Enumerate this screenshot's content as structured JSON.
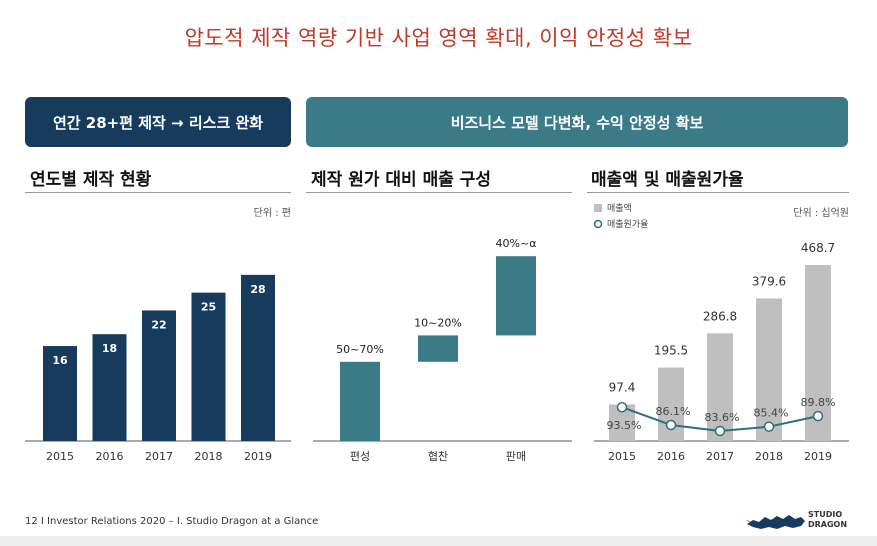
{
  "title": "압도적 제작 역량 기반 사업 영역 확대, 이익 안정성 확보",
  "banners": {
    "left": "연간 28+편 제작 → 리스크 완화",
    "right": "비즈니스 모델 다변화, 수익 안정성 확보"
  },
  "colors": {
    "title": "#c0392b",
    "navy": "#163b5c",
    "teal": "#3b7b88",
    "gray_bar": "#bfbfbf",
    "ratio_line": "#2f6f7c"
  },
  "chart_data": [
    {
      "type": "bar",
      "title": "연도별 제작 현황",
      "unit": "단위 : 편",
      "categories": [
        "2015",
        "2016",
        "2017",
        "2018",
        "2019"
      ],
      "values": [
        16,
        18,
        22,
        25,
        28
      ],
      "ylim": [
        0,
        30
      ]
    },
    {
      "type": "bar",
      "subtype": "waterfall",
      "title": "제작 원가 대비 매출 구성",
      "categories": [
        "편성",
        "협찬",
        "판매"
      ],
      "labels": [
        "50~70%",
        "10~20%",
        "40%~α"
      ],
      "ranges": [
        [
          0,
          60
        ],
        [
          60,
          80
        ],
        [
          80,
          140
        ]
      ],
      "ylim": [
        0,
        150
      ]
    },
    {
      "type": "bar",
      "title": "매출액 및 매출원가율",
      "unit": "단위 : 십억원",
      "legend": [
        "매출액",
        "매출원가율"
      ],
      "categories": [
        "2015",
        "2016",
        "2017",
        "2018",
        "2019"
      ],
      "series": [
        {
          "name": "매출액",
          "type": "bar",
          "values": [
            97.4,
            195.5,
            286.8,
            379.6,
            468.7
          ],
          "labels": [
            "97.4",
            "195.5",
            "286.8",
            "379.6",
            "468.7"
          ]
        },
        {
          "name": "매출원가율",
          "type": "line",
          "values": [
            93.5,
            86.1,
            83.6,
            85.4,
            89.8
          ],
          "labels": [
            "93.5%",
            "86.1%",
            "83.6%",
            "85.4%",
            "89.8%"
          ]
        }
      ],
      "ylim": [
        0,
        520
      ],
      "y2lim": [
        70,
        105
      ]
    }
  ],
  "footer": "12 I Investor Relations 2020 – I. Studio Dragon at a Glance",
  "logo": {
    "icon": "dragon-logo-icon",
    "brand_line1": "STUDIO",
    "brand_line2": "DRAGON"
  }
}
